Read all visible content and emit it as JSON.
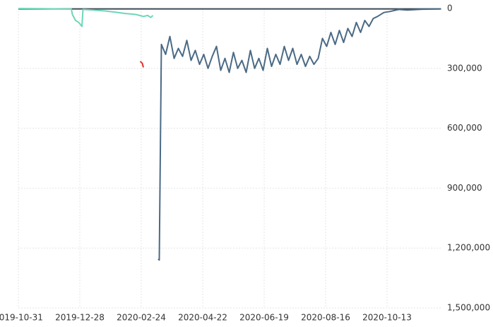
{
  "chart_data": {
    "type": "line",
    "xlim": [
      "2019-10-31",
      "2020-12-03"
    ],
    "xticks": [
      "2019-10-31",
      "2019-12-28",
      "2020-02-24",
      "2020-04-22",
      "2020-06-19",
      "2020-08-16",
      "2020-10-13"
    ],
    "ylim": [
      0,
      1500000
    ],
    "y_inverted": true,
    "y_axis_side": "right",
    "grid": true,
    "yticks": [
      {
        "value": 0,
        "label": "0"
      },
      {
        "value": 300000,
        "label": "300,000"
      },
      {
        "value": 600000,
        "label": "600,000"
      },
      {
        "value": 900000,
        "label": "900,000"
      },
      {
        "value": 1200000,
        "label": "1,200,000"
      },
      {
        "value": 1500000,
        "label": "1,500,000"
      }
    ],
    "series": [
      {
        "color": "#3d4a55",
        "x": [
          "2019-10-31",
          "2020-12-03"
        ],
        "values": [
          2000,
          2000
        ]
      },
      {
        "color": "#6fd6b8",
        "x": [
          "2019-10-31",
          "2019-11-20",
          "2019-12-10",
          "2019-12-20",
          "2019-12-21",
          "2019-12-24",
          "2019-12-27",
          "2019-12-30",
          "2019-12-31",
          "2020-01-10",
          "2020-01-20",
          "2020-01-30",
          "2020-02-09",
          "2020-02-19",
          "2020-02-26",
          "2020-03-01",
          "2020-03-04",
          "2020-03-06"
        ],
        "values": [
          0,
          1000,
          2000,
          3000,
          30000,
          60000,
          70000,
          90000,
          5000,
          8000,
          12000,
          18000,
          25000,
          30000,
          40000,
          35000,
          45000,
          35000
        ]
      },
      {
        "color": "#e0302a",
        "x": [
          "2020-02-23",
          "2020-02-25",
          "2020-02-26"
        ],
        "values": [
          265000,
          275000,
          295000
        ]
      },
      {
        "color": "#4a6a85",
        "x": [
          "2020-03-11",
          "2020-03-12",
          "2020-03-14",
          "2020-03-18",
          "2020-03-22",
          "2020-03-26",
          "2020-03-30",
          "2020-04-03",
          "2020-04-07",
          "2020-04-11",
          "2020-04-15",
          "2020-04-19",
          "2020-04-23",
          "2020-04-27",
          "2020-05-01",
          "2020-05-05",
          "2020-05-09",
          "2020-05-13",
          "2020-05-17",
          "2020-05-21",
          "2020-05-25",
          "2020-05-29",
          "2020-06-02",
          "2020-06-06",
          "2020-06-10",
          "2020-06-14",
          "2020-06-18",
          "2020-06-22",
          "2020-06-26",
          "2020-06-30",
          "2020-07-04",
          "2020-07-08",
          "2020-07-12",
          "2020-07-16",
          "2020-07-20",
          "2020-07-24",
          "2020-07-28",
          "2020-08-01",
          "2020-08-05",
          "2020-08-09",
          "2020-08-13",
          "2020-08-17",
          "2020-08-21",
          "2020-08-25",
          "2020-08-29",
          "2020-09-02",
          "2020-09-06",
          "2020-09-10",
          "2020-09-14",
          "2020-09-18",
          "2020-09-22",
          "2020-09-26",
          "2020-09-30",
          "2020-10-04",
          "2020-10-10",
          "2020-10-16",
          "2020-10-24",
          "2020-11-01",
          "2020-11-15",
          "2020-12-03"
        ],
        "values": [
          1255000,
          1260000,
          180000,
          230000,
          140000,
          250000,
          200000,
          240000,
          160000,
          260000,
          210000,
          280000,
          230000,
          300000,
          240000,
          190000,
          310000,
          250000,
          320000,
          220000,
          300000,
          260000,
          320000,
          210000,
          300000,
          250000,
          310000,
          200000,
          290000,
          230000,
          280000,
          190000,
          260000,
          200000,
          280000,
          230000,
          290000,
          240000,
          280000,
          250000,
          150000,
          190000,
          120000,
          180000,
          110000,
          170000,
          100000,
          140000,
          70000,
          120000,
          60000,
          90000,
          50000,
          40000,
          20000,
          15000,
          5000,
          8000,
          4000,
          2000
        ]
      }
    ]
  }
}
